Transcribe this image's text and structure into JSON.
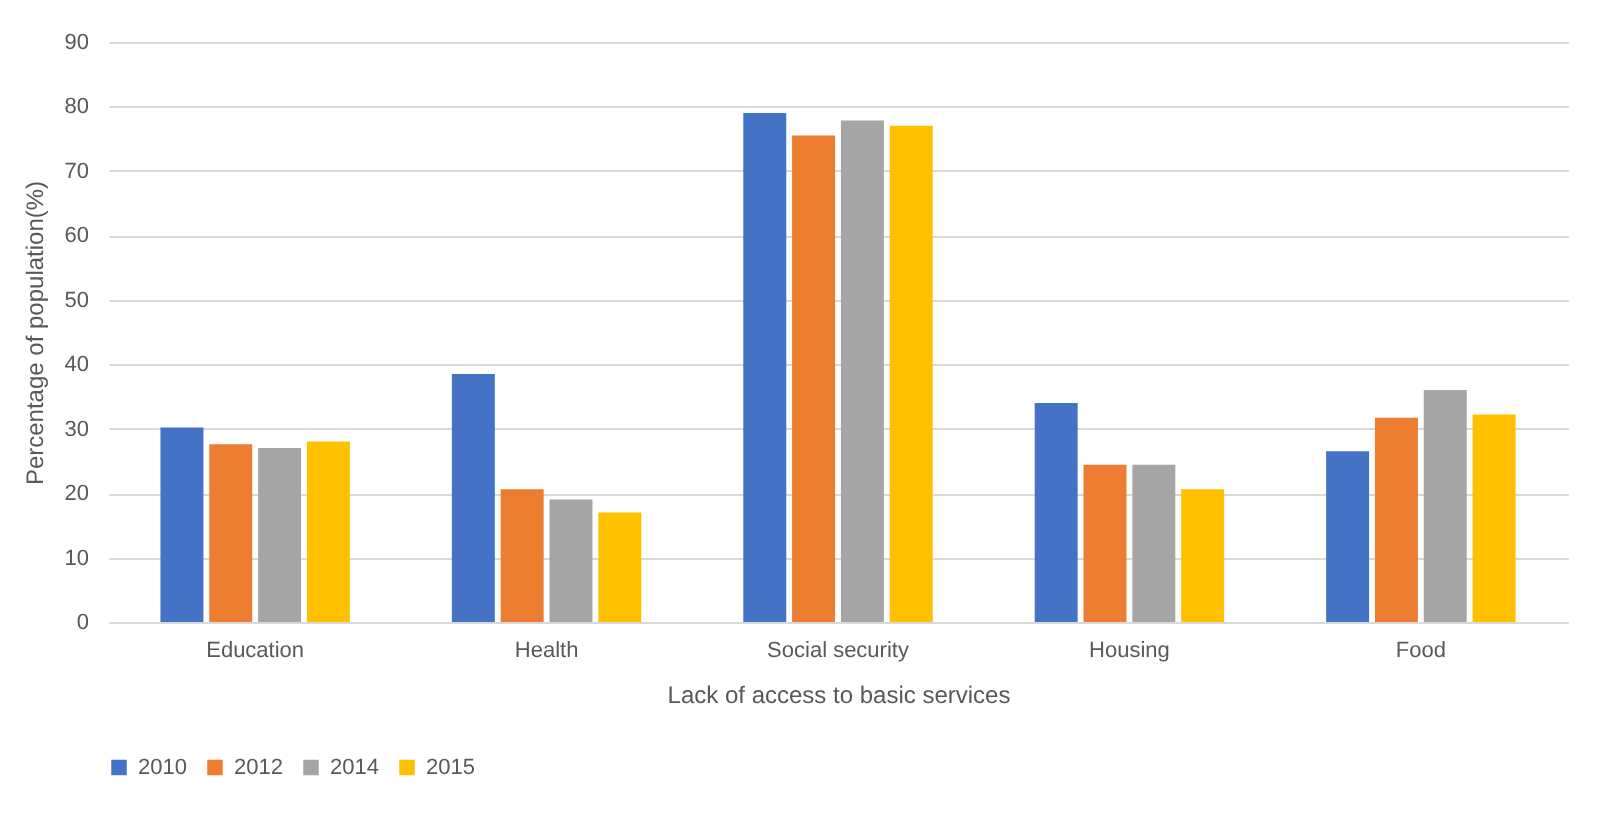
{
  "chart_data": {
    "type": "bar",
    "xlabel": "Lack of access to basic services",
    "ylabel": "Percentage of population(%)",
    "categories": [
      "Education",
      "Health",
      "Social security",
      "Housing",
      "Food"
    ],
    "series": [
      {
        "name": "2010",
        "color": "#4472c4",
        "values": [
          30.2,
          38.5,
          79,
          34,
          26.5
        ]
      },
      {
        "name": "2012",
        "color": "#ed7d31",
        "values": [
          27.6,
          20.6,
          75.5,
          24.4,
          31.7
        ]
      },
      {
        "name": "2014",
        "color": "#a5a5a5",
        "values": [
          27,
          19,
          77.8,
          24.4,
          36
        ]
      },
      {
        "name": "2015",
        "color": "#ffc000",
        "values": [
          28,
          17,
          77,
          20.6,
          32.2
        ]
      }
    ],
    "ylim": [
      0,
      90
    ],
    "yticks": [
      0,
      10,
      20,
      30,
      40,
      50,
      60,
      70,
      80,
      90
    ],
    "grid": "y",
    "legend": "bottom"
  }
}
